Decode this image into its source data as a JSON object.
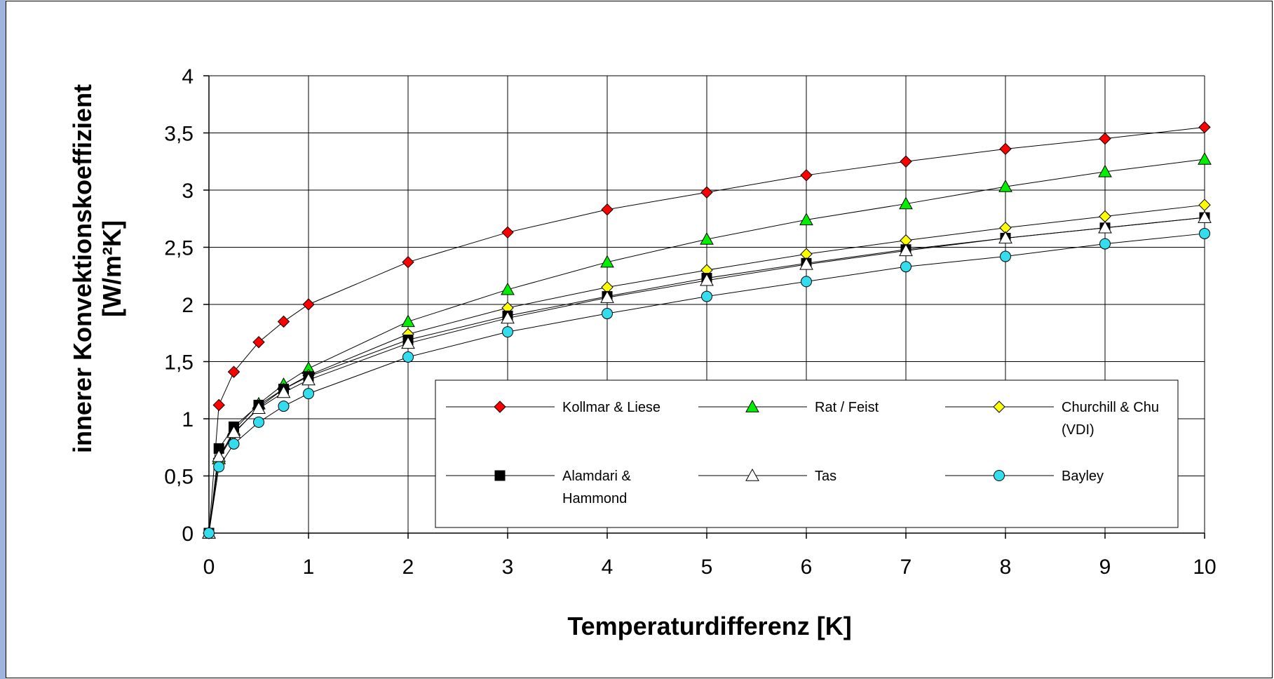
{
  "chart_data": {
    "type": "line",
    "title": "",
    "xlabel": "Temperaturdifferenz [K]",
    "ylabel_line1": "innerer Konvektionskoeffizient",
    "ylabel_line2": "[W/m²K]",
    "xlim": [
      0,
      10
    ],
    "ylim": [
      0,
      4
    ],
    "x_ticks": [
      0,
      1,
      2,
      3,
      4,
      5,
      6,
      7,
      8,
      9,
      10
    ],
    "x_tick_labels": [
      "0",
      "1",
      "2",
      "3",
      "4",
      "5",
      "6",
      "7",
      "8",
      "9",
      "10"
    ],
    "y_ticks": [
      0,
      0.5,
      1,
      1.5,
      2,
      2.5,
      3,
      3.5,
      4
    ],
    "y_tick_labels": [
      "0",
      "0,5",
      "1",
      "1,5",
      "2",
      "2,5",
      "3",
      "3,5",
      "4"
    ],
    "grid": true,
    "legend_position": "bottom-right",
    "x": [
      0,
      0.1,
      0.25,
      0.5,
      0.75,
      1,
      2,
      3,
      4,
      5,
      6,
      7,
      8,
      9,
      10
    ],
    "series": [
      {
        "name": "Kollmar & Liese",
        "marker": "diamond",
        "color": "#ff0000",
        "values": [
          0,
          1.12,
          1.41,
          1.67,
          1.85,
          2.0,
          2.37,
          2.63,
          2.83,
          2.98,
          3.13,
          3.25,
          3.36,
          3.45,
          3.55
        ]
      },
      {
        "name": "Rat / Feist",
        "marker": "triangle",
        "color": "#00ee00",
        "values": [
          0,
          0.65,
          0.9,
          1.13,
          1.3,
          1.44,
          1.85,
          2.13,
          2.37,
          2.57,
          2.74,
          2.88,
          3.03,
          3.16,
          3.27
        ]
      },
      {
        "name": "Churchill & Chu (VDI)",
        "marker": "diamond",
        "color": "#ffff00",
        "values": [
          0,
          0.65,
          0.87,
          1.1,
          1.26,
          1.38,
          1.74,
          1.97,
          2.15,
          2.3,
          2.44,
          2.56,
          2.67,
          2.77,
          2.87
        ]
      },
      {
        "name": "Alamdari & Hammond",
        "marker": "square",
        "color": "#000000",
        "values": [
          0,
          0.74,
          0.93,
          1.12,
          1.26,
          1.37,
          1.69,
          1.9,
          2.07,
          2.23,
          2.36,
          2.48,
          2.58,
          2.67,
          2.76
        ]
      },
      {
        "name": "Tas",
        "marker": "triangle",
        "color": "#ffffff",
        "values": [
          0,
          0.67,
          0.88,
          1.09,
          1.23,
          1.34,
          1.66,
          1.88,
          2.06,
          2.21,
          2.35,
          2.47,
          2.58,
          2.67,
          2.76
        ]
      },
      {
        "name": "Bayley",
        "marker": "circle",
        "color": "#33ddee",
        "values": [
          0,
          0.58,
          0.78,
          0.97,
          1.11,
          1.22,
          1.54,
          1.76,
          1.92,
          2.07,
          2.2,
          2.33,
          2.42,
          2.53,
          2.62
        ]
      }
    ],
    "legend_label_lines": [
      [
        "Kollmar & Liese"
      ],
      [
        "Rat / Feist"
      ],
      [
        "Churchill & Chu",
        "(VDI)"
      ],
      [
        "Alamdari &",
        "Hammond"
      ],
      [
        "Tas"
      ],
      [
        "Bayley"
      ]
    ]
  }
}
